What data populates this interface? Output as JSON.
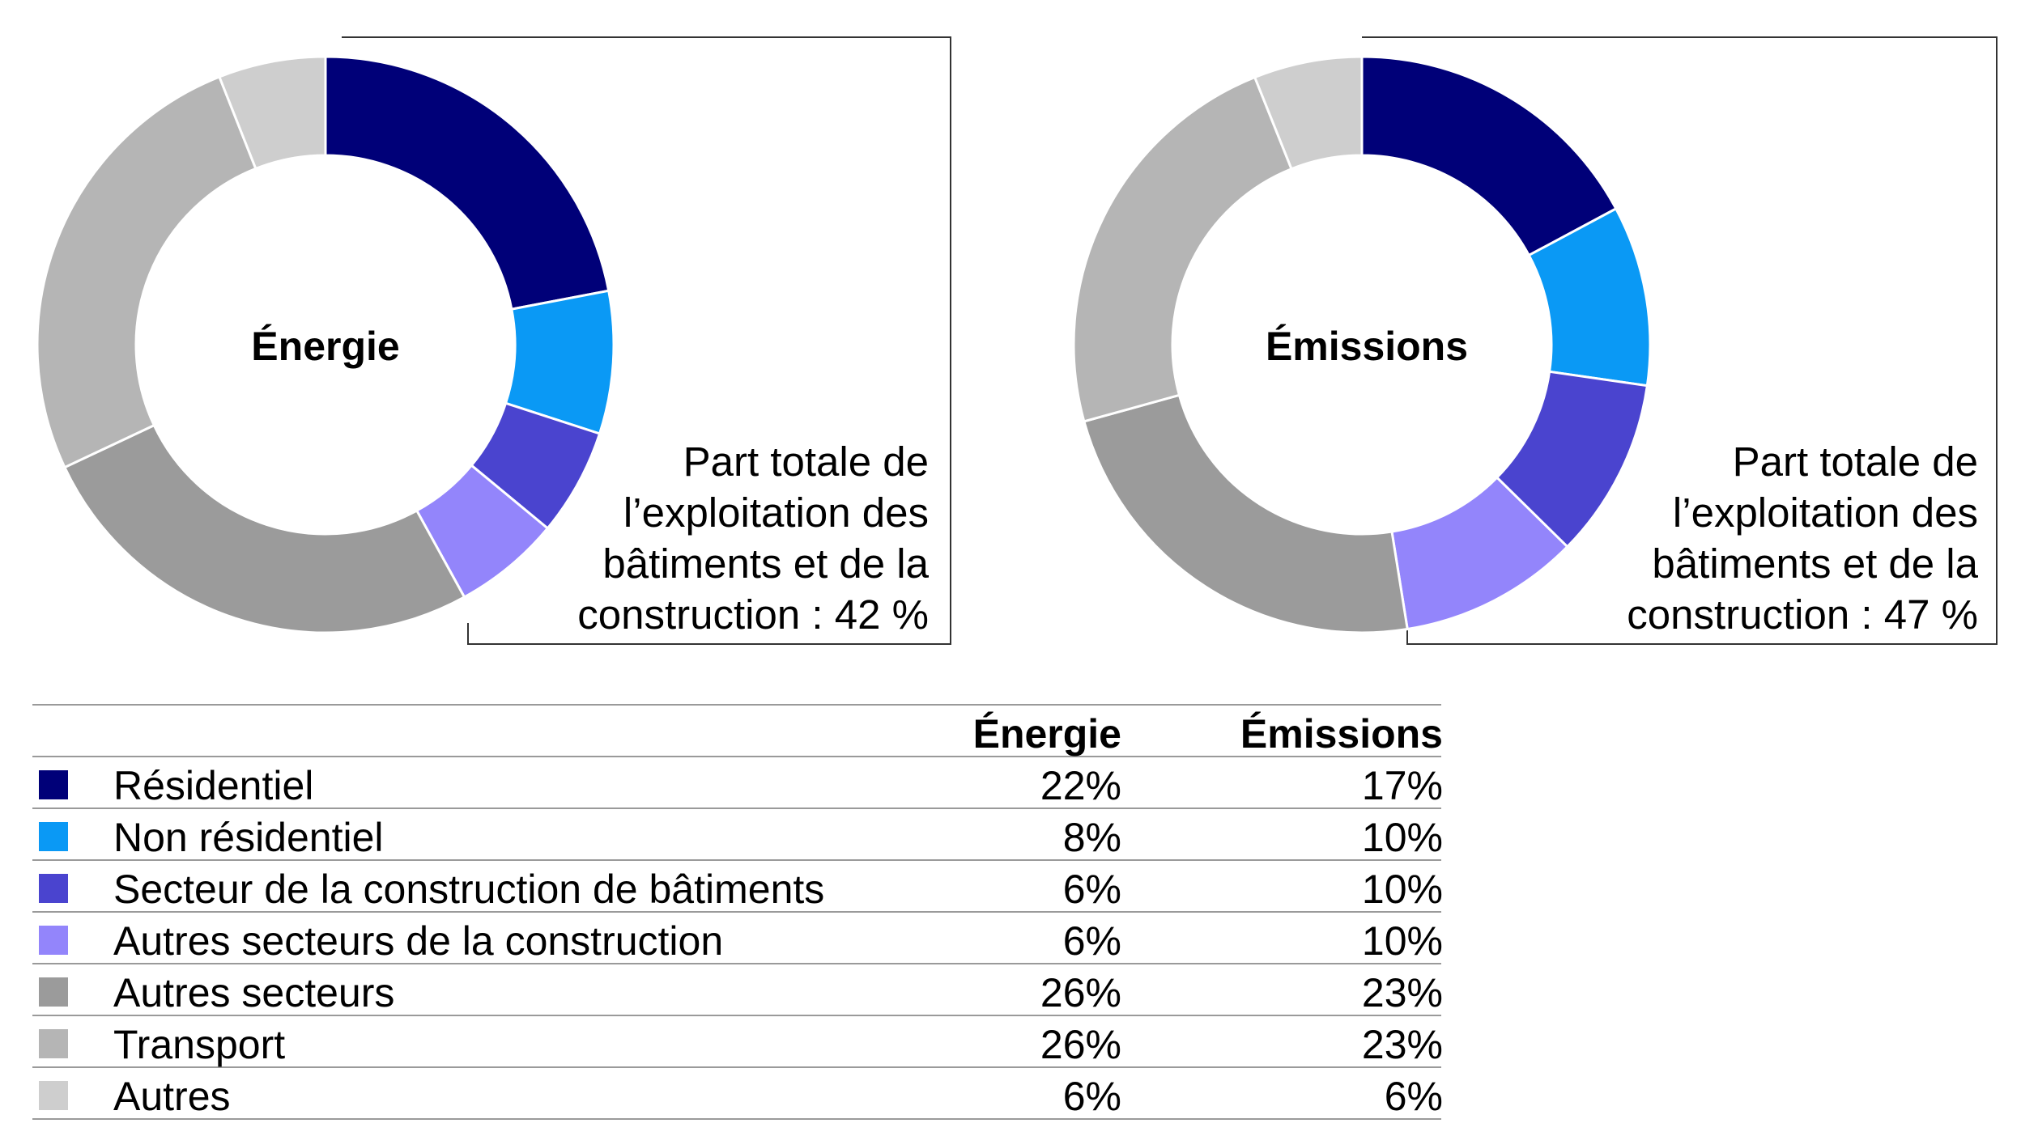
{
  "chart_data": [
    {
      "type": "pie",
      "center_label": "Énergie",
      "callout": [
        "Part totale de",
        "l’exploitation des",
        "bâtiments et de la",
        "construction : 42 %"
      ],
      "categories": [
        "Résidentiel",
        "Non résidentiel",
        "Secteur de la construction de bâtiments",
        "Autres secteurs de la construction",
        "Autres secteurs",
        "Transport",
        "Autres"
      ],
      "values": [
        22,
        8,
        6,
        6,
        26,
        26,
        6
      ],
      "colors": [
        "#000078",
        "#0a99f5",
        "#4a44cf",
        "#9385fb",
        "#9b9b9b",
        "#b5b5b5",
        "#cecece"
      ]
    },
    {
      "type": "pie",
      "center_label": "Émissions",
      "callout": [
        "Part totale de",
        "l’exploitation des",
        "bâtiments et de la",
        "construction : 47 %"
      ],
      "categories": [
        "Résidentiel",
        "Non résidentiel",
        "Secteur de la construction de bâtiments",
        "Autres secteurs de la construction",
        "Autres secteurs",
        "Transport",
        "Autres"
      ],
      "values": [
        17,
        10,
        10,
        10,
        23,
        23,
        6
      ],
      "colors": [
        "#000078",
        "#0a99f5",
        "#4a44cf",
        "#9385fb",
        "#9b9b9b",
        "#b5b5b5",
        "#cecece"
      ]
    }
  ],
  "table": {
    "headers": {
      "energy": "Énergie",
      "emissions": "Émissions"
    },
    "rows": [
      {
        "label": "Résidentiel",
        "energy": "22%",
        "emissions": "17%",
        "color": "#000078"
      },
      {
        "label": "Non résidentiel",
        "energy": "8%",
        "emissions": "10%",
        "color": "#0a99f5"
      },
      {
        "label": "Secteur de la construction de bâtiments",
        "energy": "6%",
        "emissions": "10%",
        "color": "#4a44cf"
      },
      {
        "label": "Autres secteurs de la construction",
        "energy": "6%",
        "emissions": "10%",
        "color": "#9385fb"
      },
      {
        "label": "Autres secteurs",
        "energy": "26%",
        "emissions": "23%",
        "color": "#9b9b9b"
      },
      {
        "label": "Transport",
        "energy": "26%",
        "emissions": "23%",
        "color": "#b5b5b5"
      },
      {
        "label": "Autres",
        "energy": "6%",
        "emissions": "6%",
        "color": "#cecece"
      }
    ]
  }
}
